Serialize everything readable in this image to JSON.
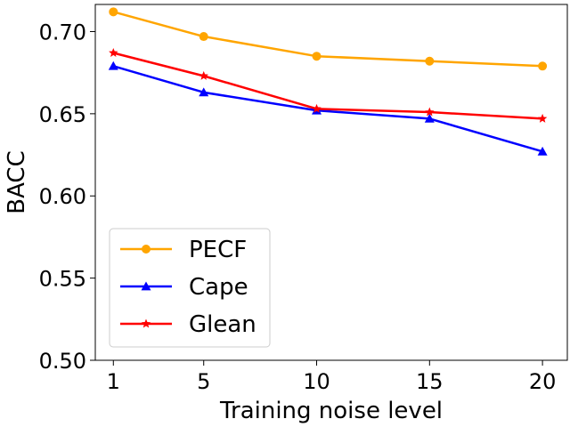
{
  "chart_data": {
    "type": "line",
    "xlabel": "Training noise level",
    "ylabel": "BACC",
    "x": [
      1,
      5,
      10,
      15,
      20
    ],
    "xticks": [
      "1",
      "5",
      "10",
      "15",
      "20"
    ],
    "xlim": [
      0.2,
      21.1
    ],
    "ylim": [
      0.5,
      0.7165
    ],
    "yticks": [
      "0.50",
      "0.55",
      "0.60",
      "0.65",
      "0.70"
    ],
    "ytick_values": [
      0.5,
      0.55,
      0.6,
      0.65,
      0.7
    ],
    "grid": false,
    "legend_position": "lower-left",
    "series": [
      {
        "name": "PECF",
        "color": "#ffa500",
        "marker": "circle",
        "values": [
          0.712,
          0.697,
          0.685,
          0.682,
          0.679
        ]
      },
      {
        "name": "Cape",
        "color": "#0000ff",
        "marker": "triangle",
        "values": [
          0.679,
          0.663,
          0.652,
          0.647,
          0.627
        ]
      },
      {
        "name": "Glean",
        "color": "#ff0000",
        "marker": "star",
        "values": [
          0.687,
          0.673,
          0.653,
          0.651,
          0.647
        ]
      }
    ]
  }
}
